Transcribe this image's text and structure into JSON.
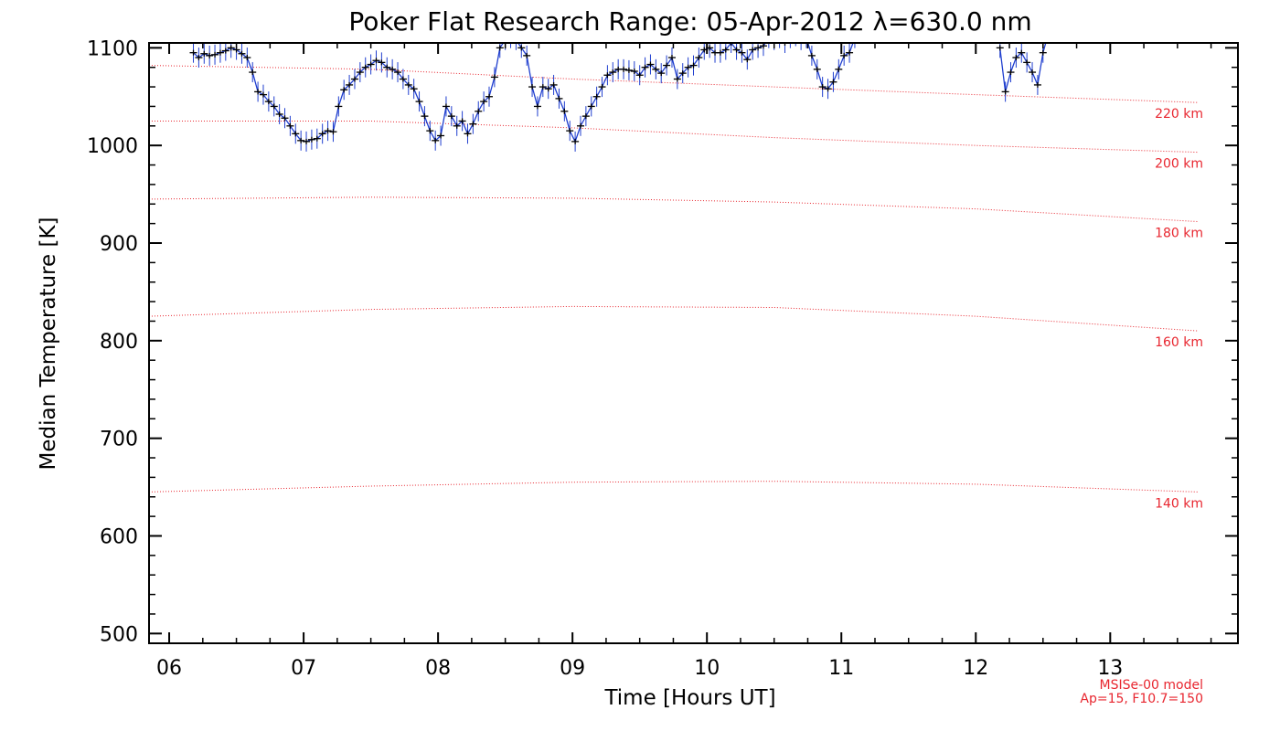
{
  "chart_data": {
    "type": "line",
    "title": "Poker Flat Research Range: 05-Apr-2012 λ=630.0 nm",
    "xlabel": "Time [Hours UT]",
    "ylabel": "Median Temperature [K]",
    "xlim": [
      5.85,
      13.95
    ],
    "ylim": [
      490,
      1105
    ],
    "x_ticks": [
      6,
      7,
      8,
      9,
      10,
      11,
      12,
      13
    ],
    "x_tick_labels": [
      "06",
      "07",
      "08",
      "09",
      "10",
      "11",
      "12",
      "13"
    ],
    "y_ticks": [
      500,
      600,
      700,
      800,
      900,
      1000,
      1100
    ],
    "y_tick_labels": [
      "500",
      "600",
      "700",
      "800",
      "900",
      "1000",
      "1100"
    ],
    "grid": false,
    "colors": {
      "data": "#1f3ecf",
      "marker": "#000000",
      "reference": "#e8262f"
    },
    "series": [
      {
        "x": [
          6.18,
          6.22,
          6.26,
          6.3,
          6.34,
          6.38,
          6.42,
          6.46,
          6.5,
          6.54,
          6.58,
          6.62,
          6.66,
          6.7,
          6.74,
          6.78,
          6.82,
          6.86,
          6.9,
          6.94,
          6.98,
          7.02,
          7.06,
          7.1,
          7.14,
          7.18,
          7.22,
          7.26,
          7.3,
          7.34,
          7.38,
          7.42,
          7.46,
          7.5,
          7.54,
          7.58,
          7.62,
          7.66,
          7.7,
          7.74,
          7.78,
          7.82,
          7.86,
          7.9,
          7.94,
          7.98,
          8.02,
          8.06,
          8.1,
          8.14,
          8.18,
          8.22,
          8.26,
          8.3,
          8.34,
          8.38,
          8.42,
          8.46,
          8.5,
          8.54,
          8.58,
          8.62,
          8.66,
          8.7,
          8.74,
          8.78,
          8.82,
          8.86,
          8.9,
          8.94,
          8.98,
          9.02,
          9.06,
          9.1,
          9.14,
          9.18,
          9.22,
          9.26,
          9.3,
          9.34,
          9.38,
          9.42,
          9.46,
          9.5,
          9.54,
          9.58,
          9.62,
          9.66,
          9.7,
          9.74,
          9.78,
          9.82,
          9.86,
          9.9,
          9.94,
          9.98,
          10.02,
          10.06,
          10.1,
          10.14,
          10.18,
          10.22,
          10.26,
          10.3,
          10.34,
          10.38,
          10.42,
          10.46,
          10.5,
          10.54,
          10.58,
          10.62,
          10.66,
          10.7,
          10.74,
          10.78,
          10.82,
          10.86,
          10.9,
          10.94,
          10.98,
          11.02,
          11.06,
          11.1,
          11.14,
          12.18,
          12.22,
          12.26,
          12.3,
          12.34,
          12.38,
          12.42,
          12.46,
          12.5,
          12.54
        ],
        "y": [
          1095,
          1090,
          1094,
          1092,
          1093,
          1095,
          1097,
          1100,
          1098,
          1094,
          1090,
          1075,
          1055,
          1052,
          1045,
          1040,
          1032,
          1028,
          1020,
          1012,
          1005,
          1004,
          1006,
          1007,
          1012,
          1015,
          1014,
          1040,
          1057,
          1062,
          1068,
          1075,
          1080,
          1083,
          1087,
          1085,
          1080,
          1078,
          1075,
          1068,
          1062,
          1058,
          1045,
          1030,
          1015,
          1005,
          1010,
          1040,
          1030,
          1020,
          1025,
          1012,
          1022,
          1035,
          1045,
          1050,
          1070,
          1100,
          1108,
          1110,
          1108,
          1100,
          1092,
          1060,
          1040,
          1060,
          1058,
          1062,
          1048,
          1035,
          1015,
          1004,
          1020,
          1030,
          1040,
          1050,
          1060,
          1072,
          1075,
          1078,
          1078,
          1077,
          1076,
          1072,
          1080,
          1083,
          1078,
          1074,
          1082,
          1090,
          1068,
          1074,
          1080,
          1082,
          1090,
          1098,
          1100,
          1095,
          1095,
          1098,
          1105,
          1098,
          1095,
          1088,
          1098,
          1100,
          1102,
          1110,
          1108,
          1110,
          1105,
          1110,
          1112,
          1108,
          1110,
          1092,
          1078,
          1060,
          1058,
          1065,
          1078,
          1092,
          1095,
          1110,
          1115,
          1100,
          1055,
          1075,
          1090,
          1095,
          1085,
          1075,
          1062,
          1095,
          1115
        ]
      }
    ],
    "reference_lines": [
      {
        "label": "140 km",
        "y": [
          645,
          651,
          655,
          656,
          653,
          645
        ]
      },
      {
        "label": "160 km",
        "y": [
          825,
          832,
          835,
          834,
          825,
          810
        ]
      },
      {
        "label": "180 km",
        "y": [
          945,
          947,
          946,
          942,
          935,
          922
        ]
      },
      {
        "label": "200 km",
        "y": [
          1025,
          1025,
          1018,
          1008,
          1000,
          993
        ]
      },
      {
        "label": "220 km",
        "y": [
          1082,
          1078,
          1068,
          1060,
          1052,
          1044
        ]
      }
    ],
    "reference_x": [
      5.85,
      7.5,
      9.0,
      10.5,
      12.0,
      13.65
    ],
    "annotation": [
      "MSISe-00 model",
      "Ap=15, F10.7=150"
    ]
  }
}
